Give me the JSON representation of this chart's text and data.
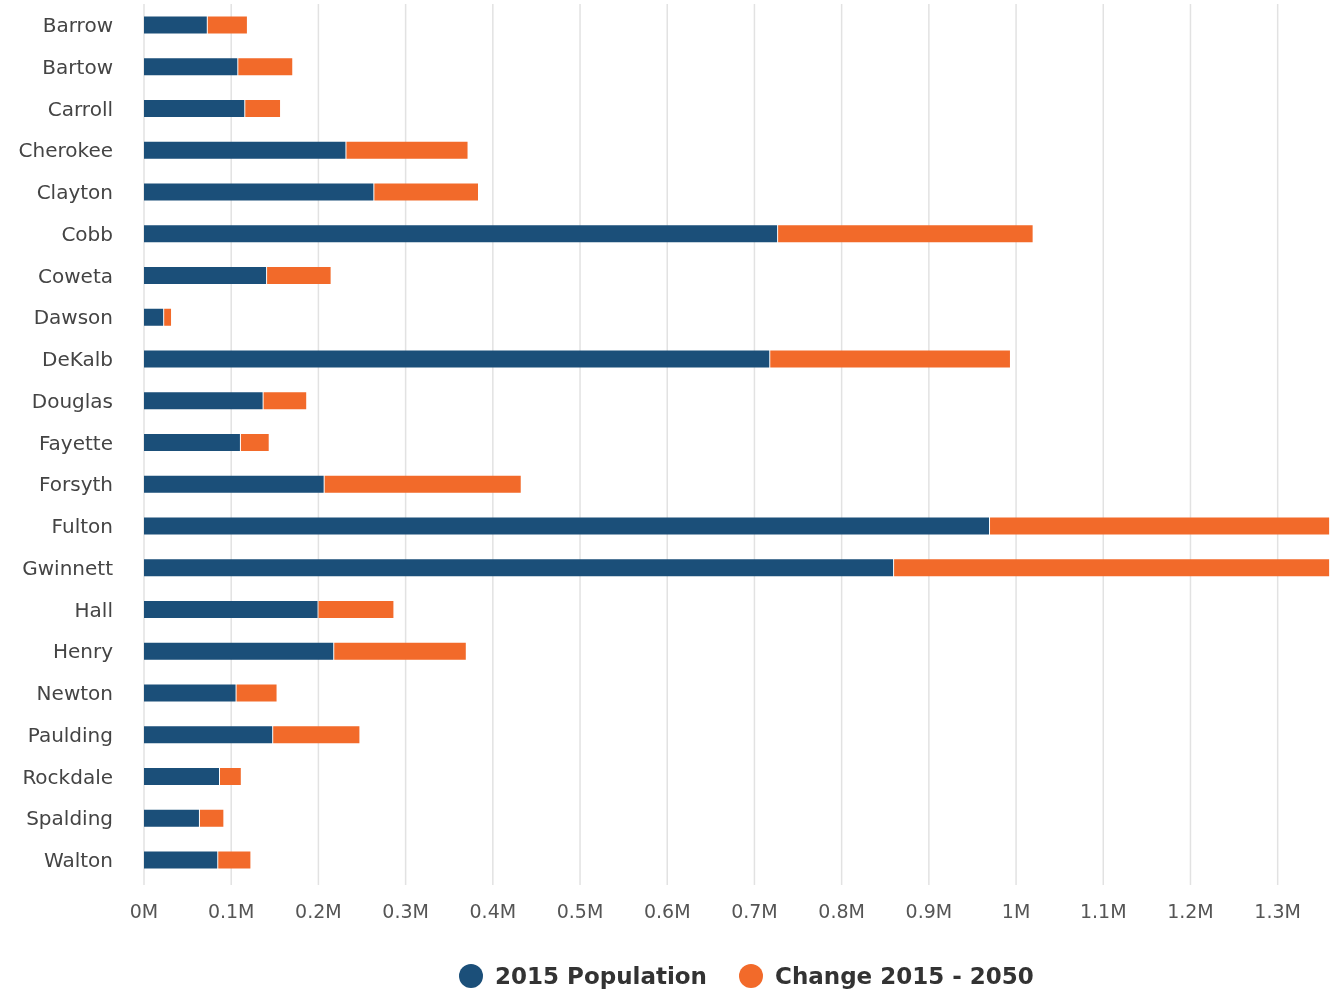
{
  "chart_data": {
    "type": "bar",
    "orientation": "horizontal",
    "stacked": true,
    "categories": [
      "Barrow",
      "Bartow",
      "Carroll",
      "Cherokee",
      "Clayton",
      "Cobb",
      "Coweta",
      "Dawson",
      "DeKalb",
      "Douglas",
      "Fayette",
      "Forsyth",
      "Fulton",
      "Gwinnett",
      "Hall",
      "Henry",
      "Newton",
      "Paulding",
      "Rockdale",
      "Spalding",
      "Walton"
    ],
    "series": [
      {
        "name": "2015 Population",
        "color": "#1b4f79",
        "values": [
          0.072,
          0.107,
          0.115,
          0.231,
          0.263,
          0.726,
          0.14,
          0.022,
          0.717,
          0.136,
          0.11,
          0.206,
          0.969,
          0.859,
          0.199,
          0.217,
          0.105,
          0.147,
          0.086,
          0.063,
          0.084
        ]
      },
      {
        "name": "Change 2015 - 2050",
        "color": "#f26a2a",
        "values": [
          0.046,
          0.063,
          0.041,
          0.14,
          0.12,
          0.293,
          0.074,
          0.009,
          0.276,
          0.05,
          0.033,
          0.226,
          0.39,
          0.5,
          0.087,
          0.152,
          0.047,
          0.1,
          0.025,
          0.028,
          0.038
        ]
      }
    ],
    "xlim": [
      0,
      1.36
    ],
    "xticks": [
      {
        "value": 0,
        "label": "0M"
      },
      {
        "value": 0.1,
        "label": "0.1M"
      },
      {
        "value": 0.2,
        "label": "0.2M"
      },
      {
        "value": 0.3,
        "label": "0.3M"
      },
      {
        "value": 0.4,
        "label": "0.4M"
      },
      {
        "value": 0.5,
        "label": "0.5M"
      },
      {
        "value": 0.6,
        "label": "0.6M"
      },
      {
        "value": 0.7,
        "label": "0.7M"
      },
      {
        "value": 0.8,
        "label": "0.8M"
      },
      {
        "value": 0.9,
        "label": "0.9M"
      },
      {
        "value": 1,
        "label": "1M"
      },
      {
        "value": 1.1,
        "label": "1.1M"
      },
      {
        "value": 1.2,
        "label": "1.2M"
      },
      {
        "value": 1.3,
        "label": "1.3M"
      }
    ],
    "grid": "x",
    "legend": "bottom"
  }
}
